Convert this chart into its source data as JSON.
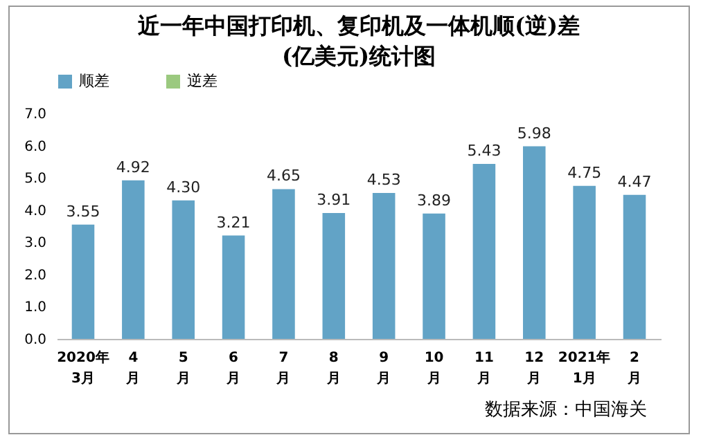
{
  "chart_data": {
    "type": "bar",
    "title": "近一年中国打印机、复印机及一体机顺(逆)差\n(亿美元)统计图",
    "categories": [
      "2020年\n3月",
      "4\n月",
      "5\n月",
      "6\n月",
      "7\n月",
      "8\n月",
      "9\n月",
      "10\n月",
      "11\n月",
      "12\n月",
      "2021年\n1月",
      "2\n月"
    ],
    "series": [
      {
        "name": "顺差",
        "color": "#62a3c6",
        "values": [
          3.55,
          4.92,
          4.3,
          3.21,
          4.65,
          3.91,
          4.53,
          3.89,
          5.43,
          5.98,
          4.75,
          4.47
        ],
        "value_labels": [
          "3.55",
          "4.92",
          "4.30",
          "3.21",
          "4.65",
          "3.91",
          "4.53",
          "3.89",
          "5.43",
          "5.98",
          "4.75",
          "4.47"
        ]
      },
      {
        "name": "逆差",
        "color": "#9bc97f",
        "values": [
          null,
          null,
          null,
          null,
          null,
          null,
          null,
          null,
          null,
          null,
          null,
          null
        ]
      }
    ],
    "ylim": [
      0,
      7
    ],
    "yticks": [
      {
        "value": 0,
        "label": "0.0"
      },
      {
        "value": 1,
        "label": "1.0"
      },
      {
        "value": 2,
        "label": "2.0"
      },
      {
        "value": 3,
        "label": "3.0"
      },
      {
        "value": 4,
        "label": "4.0"
      },
      {
        "value": 5,
        "label": "5.0"
      },
      {
        "value": 6,
        "label": "6.0"
      },
      {
        "value": 7,
        "label": "7.0"
      }
    ],
    "data_labels": true,
    "legend": "top",
    "grid": false,
    "annotations": [
      "数据来源：中国海关"
    ]
  }
}
